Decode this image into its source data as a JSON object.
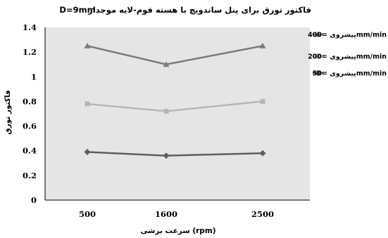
{
  "chart_data": {
    "type": "line",
    "title": "فاکتور تورق برای پنل ساندویچ با هسته فوم-لایه موجدار",
    "subtitle": "D=9mm",
    "xlabel": "سرعت برشی  (rpm)",
    "ylabel": "فاکتور تورق",
    "categories": [
      "500",
      "1600",
      "2500"
    ],
    "yticks": [
      "0",
      "0.2",
      "0.4",
      "0.6",
      "0.8",
      "1",
      "1.2",
      "1.4"
    ],
    "ylim": [
      0,
      1.4
    ],
    "grid": false,
    "legend_position": "right",
    "plot_background": "#e5e5e5",
    "series": [
      {
        "name": "پیشروی =400mm/min",
        "values": [
          1.25,
          1.1,
          1.25
        ],
        "color": "#7c7c7c",
        "marker": "triangle"
      },
      {
        "name": "پیشروی =200mm/min",
        "values": [
          0.78,
          0.72,
          0.8
        ],
        "color": "#b6b6b6",
        "marker": "square"
      },
      {
        "name": "پیشروی =50mm/min",
        "values": [
          0.39,
          0.36,
          0.38
        ],
        "color": "#5e5e5e",
        "marker": "diamond"
      }
    ]
  }
}
